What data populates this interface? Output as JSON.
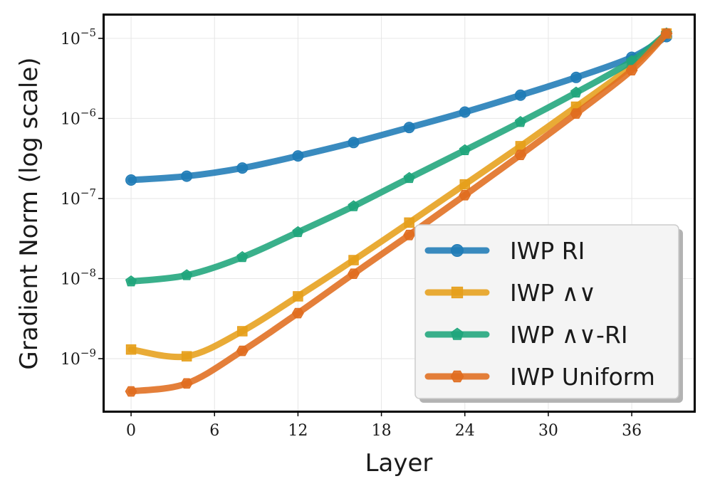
{
  "chart_data": {
    "type": "line",
    "xlabel": "Layer",
    "ylabel": "Gradient Norm (log scale)",
    "x_ticks": [
      0,
      6,
      12,
      18,
      24,
      30,
      36
    ],
    "y_ticks": [
      {
        "value": 1e-09,
        "base": "10",
        "exp": "−9"
      },
      {
        "value": 1e-08,
        "base": "10",
        "exp": "−8"
      },
      {
        "value": 1e-07,
        "base": "10",
        "exp": "−7"
      },
      {
        "value": 1e-06,
        "base": "10",
        "exp": "−6"
      },
      {
        "value": 1e-05,
        "base": "10",
        "exp": "−5"
      }
    ],
    "xlim": [
      -2,
      40.5
    ],
    "ylim": [
      2.2e-10,
      2e-05
    ],
    "y_scale": "log",
    "grid": true,
    "legend_position": "lower-right",
    "series": [
      {
        "name": "IWP RI",
        "color": "#1f7bb6",
        "marker": "circle",
        "x": [
          0,
          4,
          8,
          12,
          16,
          20,
          24,
          28,
          32,
          36,
          38.5
        ],
        "y": [
          1.7e-07,
          1.9e-07,
          2.4e-07,
          3.4e-07,
          5e-07,
          7.7e-07,
          1.2e-06,
          1.95e-06,
          3.25e-06,
          5.8e-06,
          1.05e-05
        ]
      },
      {
        "name": "IWP ∧∨",
        "color": "#e69f1a",
        "marker": "square",
        "x": [
          0,
          4,
          8,
          12,
          16,
          20,
          24,
          28,
          32,
          36,
          38.5
        ],
        "y": [
          1.3e-09,
          1.07e-09,
          2.2e-09,
          6e-09,
          1.7e-08,
          5e-08,
          1.5e-07,
          4.5e-07,
          1.4e-06,
          4.5e-06,
          1.15e-05
        ]
      },
      {
        "name": "IWP ∧∨-RI",
        "color": "#1fa57b",
        "marker": "pentagon",
        "x": [
          0,
          4,
          8,
          12,
          16,
          20,
          24,
          28,
          32,
          36,
          38.5
        ],
        "y": [
          9.2e-09,
          1.1e-08,
          1.85e-08,
          3.8e-08,
          8e-08,
          1.8e-07,
          4e-07,
          9e-07,
          2.1e-06,
          5.2e-06,
          1.15e-05
        ]
      },
      {
        "name": "IWP Uniform",
        "color": "#e06d1f",
        "marker": "hexagon",
        "x": [
          0,
          4,
          8,
          12,
          16,
          20,
          24,
          28,
          32,
          36,
          38.5
        ],
        "y": [
          3.9e-10,
          4.9e-10,
          1.25e-09,
          3.7e-09,
          1.15e-08,
          3.5e-08,
          1.1e-07,
          3.5e-07,
          1.15e-06,
          4e-06,
          1.15e-05
        ]
      }
    ]
  }
}
